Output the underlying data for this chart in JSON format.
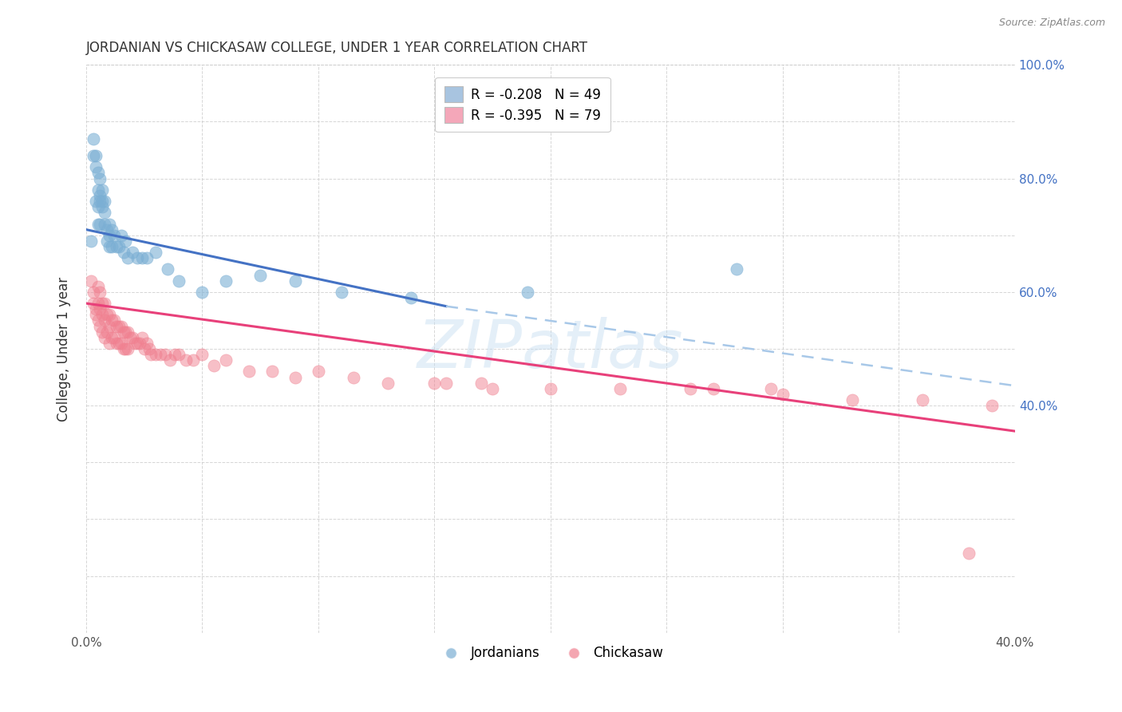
{
  "title": "JORDANIAN VS CHICKASAW COLLEGE, UNDER 1 YEAR CORRELATION CHART",
  "source": "Source: ZipAtlas.com",
  "ylabel": "College, Under 1 year",
  "xlim": [
    0.0,
    0.4
  ],
  "ylim": [
    0.0,
    1.0
  ],
  "legend_labels": [
    "R = -0.208   N = 49",
    "R = -0.395   N = 79"
  ],
  "legend_colors": [
    "#a8c4e0",
    "#f4a7b9"
  ],
  "jordanians_color": "#7bafd4",
  "chickasaw_color": "#f08090",
  "trend_jordanians_color": "#4472c4",
  "trend_chickasaw_color": "#e8407a",
  "trend_jordanians_dashed_color": "#a8c8e8",
  "background_color": "#ffffff",
  "grid_color": "#cccccc",
  "watermark_text": "ZIPatlas",
  "jordanians_x": [
    0.002,
    0.003,
    0.003,
    0.004,
    0.004,
    0.004,
    0.005,
    0.005,
    0.005,
    0.005,
    0.006,
    0.006,
    0.006,
    0.006,
    0.007,
    0.007,
    0.007,
    0.008,
    0.008,
    0.008,
    0.009,
    0.009,
    0.01,
    0.01,
    0.01,
    0.011,
    0.011,
    0.012,
    0.013,
    0.014,
    0.015,
    0.016,
    0.017,
    0.018,
    0.02,
    0.022,
    0.024,
    0.026,
    0.03,
    0.035,
    0.04,
    0.05,
    0.06,
    0.075,
    0.09,
    0.11,
    0.14,
    0.19,
    0.28
  ],
  "jordanians_y": [
    0.69,
    0.87,
    0.84,
    0.84,
    0.82,
    0.76,
    0.81,
    0.78,
    0.75,
    0.72,
    0.8,
    0.77,
    0.76,
    0.72,
    0.78,
    0.76,
    0.75,
    0.76,
    0.74,
    0.72,
    0.71,
    0.69,
    0.72,
    0.7,
    0.68,
    0.71,
    0.68,
    0.7,
    0.68,
    0.68,
    0.7,
    0.67,
    0.69,
    0.66,
    0.67,
    0.66,
    0.66,
    0.66,
    0.67,
    0.64,
    0.62,
    0.6,
    0.62,
    0.63,
    0.62,
    0.6,
    0.59,
    0.6,
    0.64
  ],
  "chickasaw_x": [
    0.002,
    0.003,
    0.003,
    0.004,
    0.004,
    0.005,
    0.005,
    0.005,
    0.006,
    0.006,
    0.006,
    0.007,
    0.007,
    0.007,
    0.008,
    0.008,
    0.008,
    0.009,
    0.009,
    0.01,
    0.01,
    0.01,
    0.011,
    0.011,
    0.012,
    0.012,
    0.013,
    0.013,
    0.014,
    0.014,
    0.015,
    0.015,
    0.016,
    0.016,
    0.017,
    0.017,
    0.018,
    0.018,
    0.019,
    0.02,
    0.021,
    0.022,
    0.023,
    0.024,
    0.025,
    0.026,
    0.027,
    0.028,
    0.03,
    0.032,
    0.034,
    0.036,
    0.038,
    0.04,
    0.043,
    0.046,
    0.05,
    0.055,
    0.06,
    0.07,
    0.08,
    0.09,
    0.1,
    0.115,
    0.13,
    0.15,
    0.17,
    0.2,
    0.23,
    0.26,
    0.3,
    0.33,
    0.36,
    0.39,
    0.27,
    0.295,
    0.155,
    0.175,
    0.38
  ],
  "chickasaw_y": [
    0.62,
    0.6,
    0.58,
    0.57,
    0.56,
    0.61,
    0.58,
    0.55,
    0.6,
    0.57,
    0.54,
    0.58,
    0.56,
    0.53,
    0.58,
    0.55,
    0.52,
    0.56,
    0.53,
    0.56,
    0.54,
    0.51,
    0.55,
    0.52,
    0.55,
    0.52,
    0.54,
    0.51,
    0.54,
    0.51,
    0.54,
    0.51,
    0.53,
    0.5,
    0.53,
    0.5,
    0.53,
    0.5,
    0.52,
    0.52,
    0.51,
    0.51,
    0.51,
    0.52,
    0.5,
    0.51,
    0.5,
    0.49,
    0.49,
    0.49,
    0.49,
    0.48,
    0.49,
    0.49,
    0.48,
    0.48,
    0.49,
    0.47,
    0.48,
    0.46,
    0.46,
    0.45,
    0.46,
    0.45,
    0.44,
    0.44,
    0.44,
    0.43,
    0.43,
    0.43,
    0.42,
    0.41,
    0.41,
    0.4,
    0.43,
    0.43,
    0.44,
    0.43,
    0.14
  ],
  "trend_j_x0": 0.0,
  "trend_j_y0": 0.71,
  "trend_j_x1": 0.155,
  "trend_j_y1": 0.575,
  "trend_j_dash_x0": 0.155,
  "trend_j_dash_y0": 0.575,
  "trend_j_dash_x1": 0.4,
  "trend_j_dash_y1": 0.435,
  "trend_c_x0": 0.0,
  "trend_c_y0": 0.58,
  "trend_c_x1": 0.4,
  "trend_c_y1": 0.355
}
